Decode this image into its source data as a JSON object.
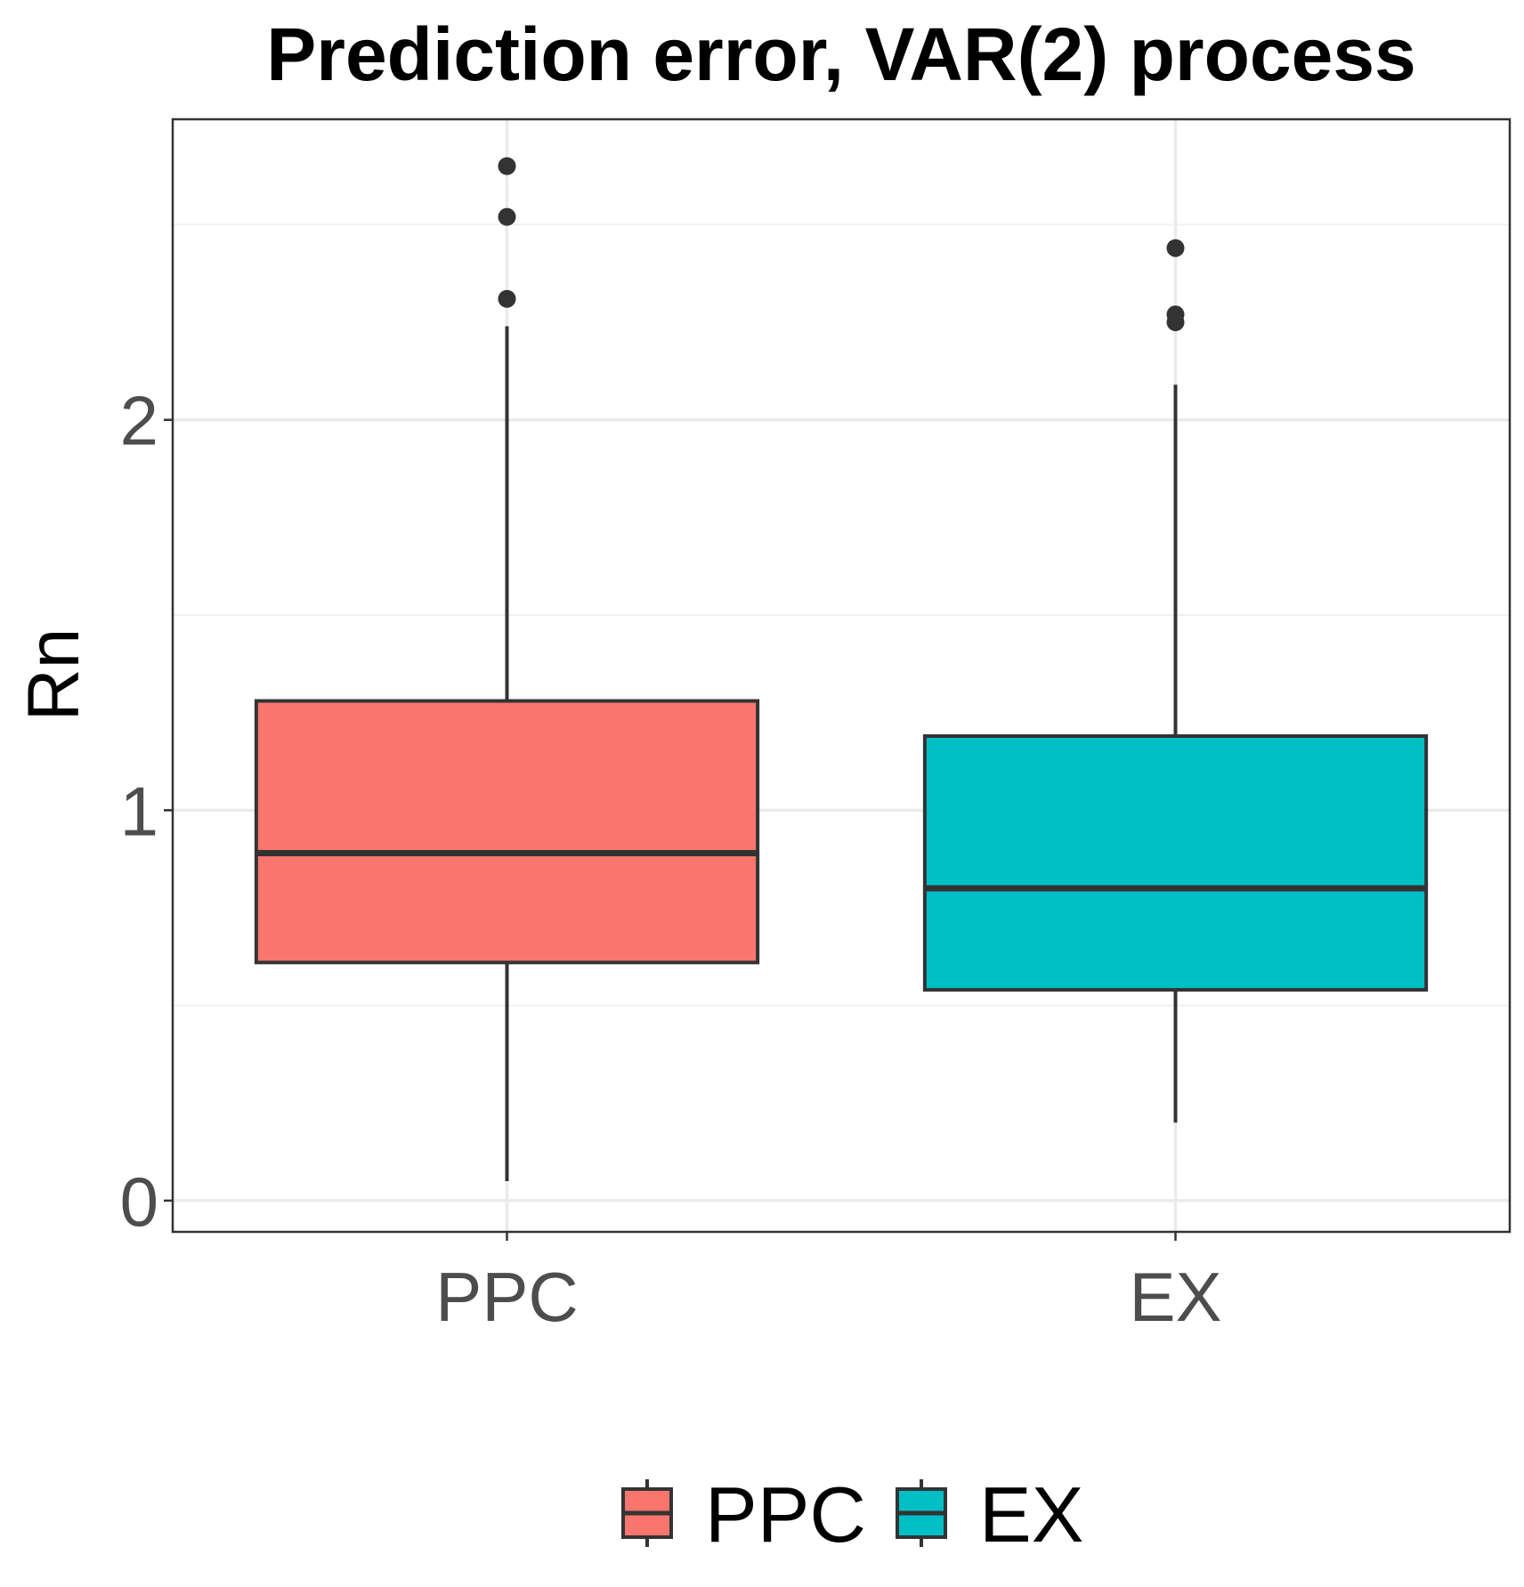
{
  "chart_data": {
    "type": "box",
    "title": "Prediction error, VAR(2) process",
    "xlabel": "",
    "ylabel": "Rn",
    "ylim": [
      -0.08,
      2.77
    ],
    "yticks": [
      0,
      1,
      2
    ],
    "grid": true,
    "categories": [
      "PPC",
      "EX"
    ],
    "series": [
      {
        "name": "PPC",
        "color": "#F8766D",
        "whisker_low": 0.05,
        "q1": 0.61,
        "median": 0.89,
        "q3": 1.28,
        "whisker_high": 2.24,
        "outliers": [
          2.31,
          2.52,
          2.65
        ]
      },
      {
        "name": "EX",
        "color": "#00BFC4",
        "whisker_low": 0.2,
        "q1": 0.54,
        "median": 0.8,
        "q3": 1.19,
        "whisker_high": 2.09,
        "outliers": [
          2.25,
          2.27,
          2.44
        ]
      }
    ],
    "legend": {
      "position": "bottom",
      "entries": [
        "PPC",
        "EX"
      ]
    }
  }
}
